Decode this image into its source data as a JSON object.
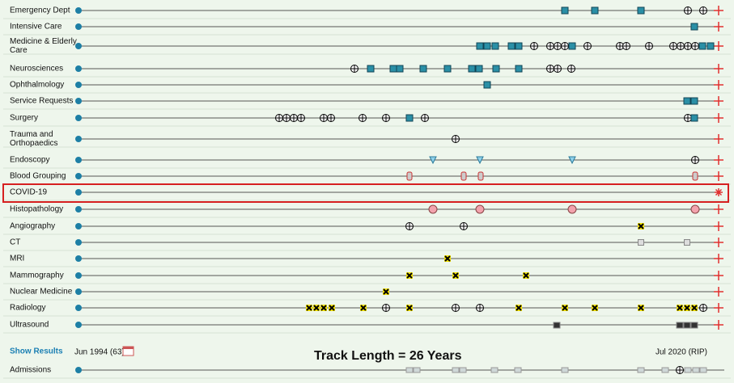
{
  "rows": [
    "Emergency Dept",
    "Intensive Care",
    "Medicine & Elderly Care",
    "Neurosciences",
    "Ophthalmology",
    "Service Requests",
    "Surgery",
    "Trauma and Orthopaedics",
    "Endoscopy",
    "Blood Grouping",
    "COVID-19",
    "Histopathology",
    "Angiography",
    "CT",
    "MRI",
    "Mammography",
    "Nuclear Medicine",
    "Radiology",
    "Ultrasound"
  ],
  "footer": {
    "show_results": "Show Results",
    "start_date": "Jun 1994 (63)",
    "track_length": "Track Length = 26 Years",
    "end_date": "Jul 2020 (RIP)"
  },
  "admissions": "Admissions"
}
